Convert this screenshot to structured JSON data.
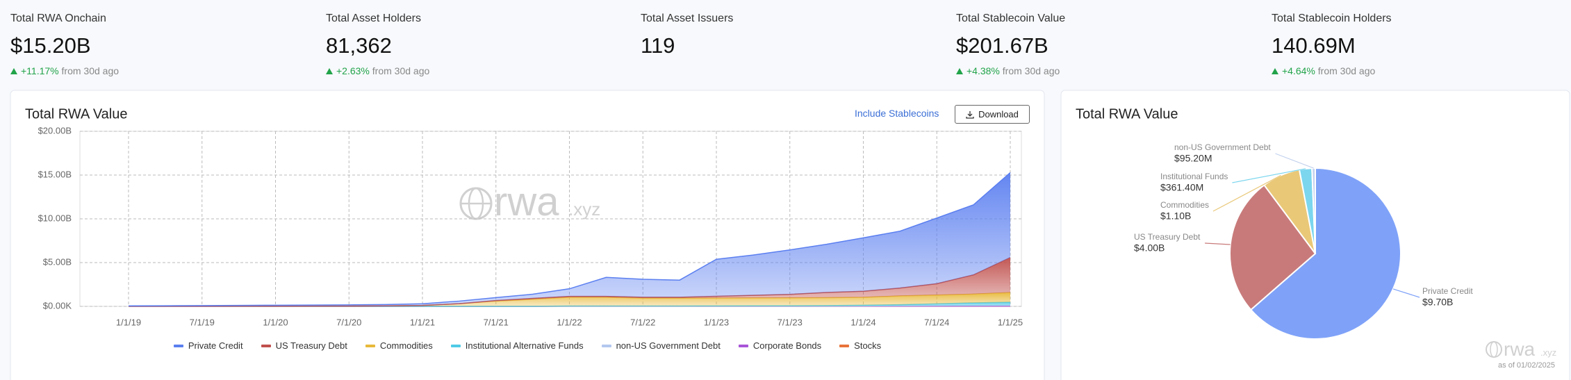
{
  "stats": [
    {
      "label": "Total RWA Onchain",
      "value": "$15.20B",
      "change": "+11.17%",
      "note": "from 30d ago"
    },
    {
      "label": "Total Asset Holders",
      "value": "81,362",
      "change": "+2.63%",
      "note": "from 30d ago"
    },
    {
      "label": "Total Asset Issuers",
      "value": "119"
    },
    {
      "label": "Total Stablecoin Value",
      "value": "$201.67B",
      "change": "+4.38%",
      "note": "from 30d ago"
    },
    {
      "label": "Total Stablecoin Holders",
      "value": "140.69M",
      "change": "+4.64%",
      "note": "from 30d ago"
    }
  ],
  "controls": {
    "toggle": "Include Stablecoins",
    "download": "Download"
  },
  "watermark": {
    "main": "rwa",
    "suffix": ".xyz"
  },
  "as_of": "as of 01/02/2025",
  "chart_data": [
    {
      "type": "area",
      "stacked": true,
      "title": "Total RWA Value",
      "categories": [
        "1/1/19",
        null,
        "7/1/19",
        null,
        "1/1/20",
        null,
        "7/1/20",
        null,
        "1/1/21",
        null,
        "7/1/21",
        null,
        "1/1/22",
        null,
        "7/1/22",
        null,
        "1/1/23",
        null,
        "7/1/23",
        null,
        "1/1/24",
        null,
        "7/1/24",
        null,
        "1/1/25"
      ],
      "series": [
        {
          "name": "Private Credit",
          "color": "#5b7ff0",
          "values": [
            0.04,
            0.05,
            0.07,
            0.08,
            0.1,
            0.11,
            0.13,
            0.15,
            0.19,
            0.29,
            0.34,
            0.48,
            0.87,
            2.17,
            2.06,
            1.96,
            4.23,
            4.6,
            5.08,
            5.5,
            6.1,
            6.5,
            7.5,
            8.0,
            9.7
          ]
        },
        {
          "name": "US Treasury Debt",
          "color": "#c0504d",
          "values": [
            0,
            0,
            0,
            0,
            0,
            0,
            0,
            0,
            0,
            0,
            0.05,
            0.1,
            0.1,
            0.1,
            0.1,
            0.1,
            0.2,
            0.3,
            0.4,
            0.6,
            0.7,
            0.9,
            1.3,
            2.2,
            4.0
          ]
        },
        {
          "name": "Commodities",
          "color": "#e8b93a",
          "values": [
            0.01,
            0.01,
            0.01,
            0.02,
            0.02,
            0.03,
            0.03,
            0.05,
            0.1,
            0.3,
            0.6,
            0.8,
            1.0,
            1.0,
            0.9,
            0.9,
            0.9,
            0.9,
            0.9,
            0.9,
            0.9,
            1.0,
            1.0,
            1.0,
            1.1
          ]
        },
        {
          "name": "Institutional Alternative Funds",
          "color": "#4fcbe6",
          "values": [
            0,
            0,
            0,
            0,
            0,
            0,
            0,
            0,
            0,
            0,
            0,
            0,
            0,
            0,
            0,
            0,
            0.01,
            0.02,
            0.03,
            0.05,
            0.08,
            0.12,
            0.2,
            0.3,
            0.36
          ]
        },
        {
          "name": "non-US Government Debt",
          "color": "#b3c8ef",
          "values": [
            0.01,
            0.01,
            0.01,
            0.01,
            0.01,
            0.01,
            0.01,
            0.01,
            0.01,
            0.01,
            0.01,
            0.01,
            0.02,
            0.02,
            0.02,
            0.02,
            0.02,
            0.02,
            0.02,
            0.02,
            0.03,
            0.05,
            0.07,
            0.08,
            0.1
          ]
        },
        {
          "name": "Corporate Bonds",
          "color": "#a855d8",
          "values": [
            0,
            0,
            0,
            0,
            0,
            0,
            0,
            0,
            0,
            0,
            0,
            0,
            0.01,
            0.01,
            0.01,
            0.01,
            0.01,
            0.01,
            0.01,
            0.01,
            0.01,
            0.01,
            0.01,
            0.01,
            0.01
          ]
        },
        {
          "name": "Stocks",
          "color": "#e8733a",
          "values": [
            0,
            0,
            0,
            0,
            0,
            0,
            0,
            0,
            0,
            0,
            0,
            0,
            0.01,
            0.01,
            0.01,
            0.01,
            0.01,
            0.01,
            0.01,
            0.01,
            0.01,
            0.01,
            0.01,
            0.01,
            0.01
          ]
        }
      ],
      "ylim": [
        0,
        20
      ],
      "yticks": [
        {
          "value": 0,
          "label": "$0.00K"
        },
        {
          "value": 5,
          "label": "$5.00B"
        },
        {
          "value": 10,
          "label": "$10.00B"
        },
        {
          "value": 15,
          "label": "$15.00B"
        },
        {
          "value": 20,
          "label": "$20.00B"
        }
      ],
      "grid": true,
      "legend": "bottom"
    },
    {
      "type": "pie",
      "title": "Total RWA Value",
      "categories": [
        "Private Credit",
        "US Treasury Debt",
        "Commodities",
        "Institutional Funds",
        "non-US Government Debt"
      ],
      "values": [
        9.7,
        4.0,
        1.1,
        0.3614,
        0.0952
      ],
      "value_labels": [
        "$9.70B",
        "$4.00B",
        "$1.10B",
        "$361.40M",
        "$95.20M"
      ],
      "colors": [
        "#7fa2f8",
        "#c87a7a",
        "#e9c878",
        "#7bd6ee",
        "#c3d2ee"
      ]
    }
  ]
}
